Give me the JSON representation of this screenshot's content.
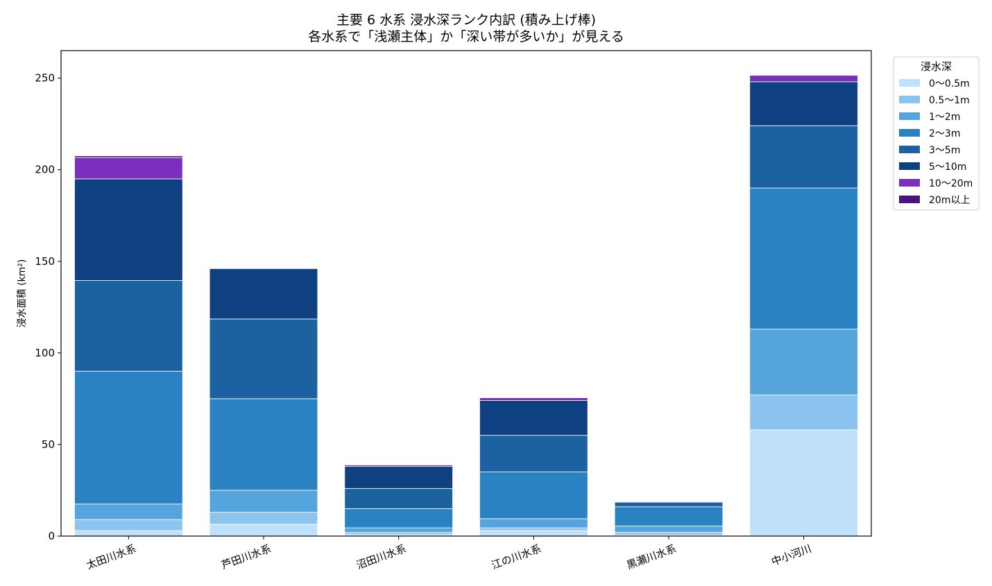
{
  "chart_data": {
    "type": "bar",
    "stacked": true,
    "title": "主要 6 水系 浸水深ランク内訳 (積み上げ棒)",
    "subtitle": "各水系で「浅瀬主体」か「深い帯が多いか」が見える",
    "xlabel": "",
    "ylabel": "浸水面積 (km²)",
    "ylim": [
      0,
      265
    ],
    "yticks": [
      0,
      50,
      100,
      150,
      200,
      250
    ],
    "grid": false,
    "legend_title": "浸水深",
    "legend_position": "outside-top-right",
    "categories": [
      "太田川水系",
      "芦田川水系",
      "沼田川水系",
      "江の川水系",
      "黒瀬川水系",
      "中小河川"
    ],
    "series": [
      {
        "name": "0〜0.5m",
        "color": "#bfe1fb",
        "values": [
          3,
          6.5,
          0.8,
          3,
          0.6,
          58
        ]
      },
      {
        "name": "0.5〜1m",
        "color": "#8bc4ef",
        "values": [
          6,
          6.5,
          1.2,
          1.5,
          1.4,
          19
        ]
      },
      {
        "name": "1〜2m",
        "color": "#56a4dc",
        "values": [
          8.5,
          12,
          2.5,
          5,
          3.5,
          36
        ]
      },
      {
        "name": "2〜3m",
        "color": "#2a82c3",
        "values": [
          72.5,
          50,
          10.5,
          25.5,
          10.5,
          77
        ]
      },
      {
        "name": "3〜5m",
        "color": "#1c62a1",
        "values": [
          49.5,
          43.5,
          11,
          20,
          2.5,
          34
        ]
      },
      {
        "name": "5〜10m",
        "color": "#0f4182",
        "values": [
          55.5,
          27.5,
          12,
          19,
          0,
          24
        ]
      },
      {
        "name": "10〜20m",
        "color": "#7b2fbd",
        "values": [
          11.5,
          0,
          0.8,
          1.5,
          0,
          3.5
        ]
      },
      {
        "name": "20m以上",
        "color": "#4a137e",
        "values": [
          1,
          0,
          0,
          0,
          0,
          0
        ]
      }
    ]
  }
}
